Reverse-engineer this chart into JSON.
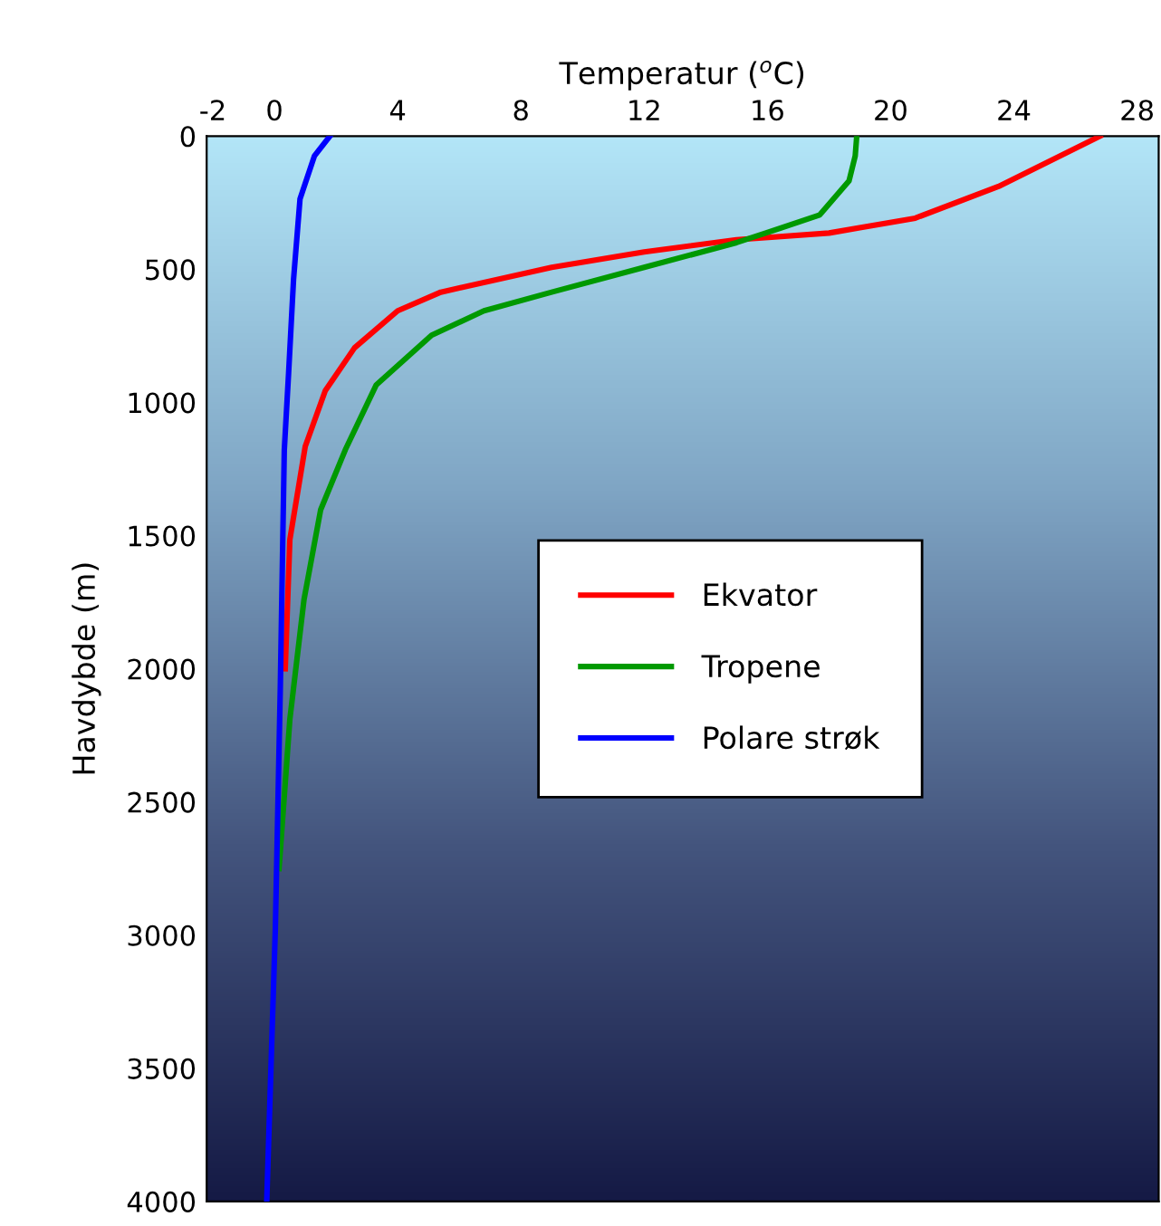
{
  "chart_data": {
    "type": "line",
    "xlabel": "Temperatur ($^{o}$C)",
    "ylabel": "Havdybde (m)",
    "xlim": [
      -2.2,
      28.7
    ],
    "xticks": [
      -2,
      0,
      4,
      8,
      12,
      16,
      20,
      24,
      28
    ],
    "ylim": [
      4000,
      0
    ],
    "yticks": [
      0,
      500,
      1000,
      1500,
      2000,
      2500,
      3000,
      3500,
      4000
    ],
    "grid": false,
    "legend": "center",
    "marker": "none",
    "line_style": "solid",
    "series": [
      {
        "name": "Ekvator",
        "color": "#ff0000",
        "x": [
          26.8,
          23.5,
          20.8,
          18.0,
          15.0,
          12.0,
          9.0,
          5.4,
          4.0,
          2.6,
          1.65,
          1.0,
          0.5,
          0.35
        ],
        "values": [
          0,
          189,
          308,
          364,
          389,
          435,
          493,
          586,
          656,
          795,
          956,
          1165,
          1515,
          2000
        ]
      },
      {
        "name": "Tropene",
        "color": "#009900",
        "x": [
          18.9,
          18.85,
          18.65,
          17.7,
          15.9,
          15.0,
          12.0,
          9.0,
          6.8,
          5.1,
          3.3,
          2.3,
          1.5,
          0.96,
          0.5,
          0.15
        ],
        "values": [
          0,
          75,
          168,
          296,
          366,
          400,
          493,
          586,
          656,
          748,
          935,
          1178,
          1403,
          1740,
          2190,
          2750
        ]
      },
      {
        "name": "Polare strøk",
        "color": "#0000ff",
        "x": [
          1.8,
          1.3,
          0.83,
          0.62,
          0.46,
          0.32,
          0.19,
          0.03,
          -0.25
        ],
        "values": [
          0,
          74,
          236,
          539,
          889,
          1178,
          2074,
          2974,
          4000
        ]
      }
    ]
  }
}
